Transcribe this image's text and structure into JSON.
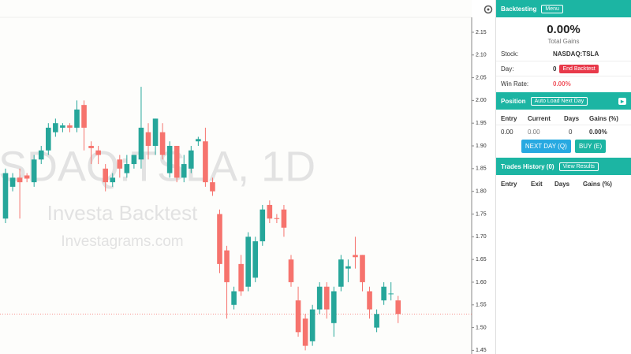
{
  "chart_data": {
    "type": "candlestick",
    "watermark": [
      "SDAQ:TSLA, 1D",
      "Investa Backtest",
      "Investagrams.com"
    ],
    "up_color": "#26a69a",
    "down_color": "#f6736d",
    "ylim": [
      1.442,
      2.221
    ],
    "yticks": [
      1.45,
      {
        "value": 1.5,
        "label": "1.50"
      },
      1.55,
      {
        "value": 1.6,
        "label": "1.60"
      },
      1.65,
      {
        "value": 1.7,
        "label": "1.70"
      },
      1.75,
      {
        "value": 1.8,
        "label": "1.80"
      },
      1.85,
      {
        "value": 1.9,
        "label": "1.90"
      },
      1.95,
      {
        "value": 2.0,
        "label": "2.00"
      },
      2.05,
      {
        "value": 2.1,
        "label": "2.10"
      },
      2.15
    ],
    "price_line": 1.53,
    "open": [
      1.74,
      1.81,
      1.83,
      1.835,
      1.82,
      1.87,
      1.89,
      1.93,
      1.94,
      1.945,
      1.94,
      1.99,
      1.9,
      1.89,
      1.85,
      1.82,
      1.87,
      1.84,
      1.86,
      1.87,
      1.93,
      1.9,
      1.93,
      1.84,
      1.9,
      1.83,
      1.85,
      1.91,
      1.91,
      1.82,
      1.75,
      1.67,
      1.55,
      1.64,
      1.59,
      1.61,
      1.69,
      1.77,
      1.741,
      1.76,
      1.65,
      1.56,
      1.52,
      1.47,
      1.54,
      1.59,
      1.51,
      1.59,
      1.63,
      1.66,
      1.66,
      1.58,
      1.5,
      1.56,
      1.574,
      1.56
    ],
    "high": [
      1.85,
      1.84,
      1.85,
      1.84,
      1.88,
      1.9,
      1.95,
      1.96,
      1.95,
      1.95,
      2.0,
      2.0,
      1.91,
      1.9,
      1.86,
      1.84,
      1.88,
      1.88,
      1.88,
      2.03,
      1.95,
      1.96,
      1.95,
      1.91,
      1.9,
      1.88,
      1.9,
      1.92,
      1.94,
      1.83,
      1.76,
      1.68,
      1.59,
      1.66,
      1.71,
      1.7,
      1.77,
      1.78,
      1.75,
      1.77,
      1.66,
      1.59,
      1.53,
      1.55,
      1.6,
      1.6,
      1.59,
      1.66,
      1.65,
      1.7,
      1.66,
      1.59,
      1.54,
      1.6,
      1.6,
      1.57
    ],
    "low": [
      1.73,
      1.8,
      1.74,
      1.82,
      1.81,
      1.86,
      1.88,
      1.92,
      1.93,
      1.93,
      1.93,
      1.89,
      1.86,
      1.86,
      1.8,
      1.81,
      1.83,
      1.83,
      1.85,
      1.85,
      1.87,
      1.88,
      1.87,
      1.83,
      1.82,
      1.82,
      1.84,
      1.9,
      1.81,
      1.79,
      1.62,
      1.52,
      1.54,
      1.57,
      1.58,
      1.6,
      1.68,
      1.73,
      1.73,
      1.7,
      1.59,
      1.48,
      1.45,
      1.46,
      1.53,
      1.52,
      1.48,
      1.58,
      1.6,
      1.63,
      1.58,
      1.52,
      1.49,
      1.55,
      1.56,
      1.51
    ],
    "close": [
      1.84,
      1.83,
      1.82,
      1.828,
      1.87,
      1.89,
      1.94,
      1.95,
      1.945,
      1.94,
      1.98,
      1.94,
      1.895,
      1.88,
      1.82,
      1.83,
      1.85,
      1.86,
      1.88,
      1.94,
      1.9,
      1.96,
      1.88,
      1.9,
      1.83,
      1.86,
      1.89,
      1.915,
      1.82,
      1.8,
      1.64,
      1.6,
      1.58,
      1.58,
      1.7,
      1.69,
      1.76,
      1.74,
      1.739,
      1.72,
      1.6,
      1.49,
      1.46,
      1.54,
      1.59,
      1.54,
      1.58,
      1.65,
      1.635,
      1.655,
      1.6,
      1.54,
      1.53,
      1.59,
      1.575,
      1.53
    ]
  },
  "panel": {
    "header": {
      "title": "Backtesting",
      "menu": "Menu"
    },
    "total": {
      "value": "0.00%",
      "label": "Total Gains"
    },
    "stock": {
      "label": "Stock:",
      "value": "NASDAQ:TSLA"
    },
    "day": {
      "label": "Day:",
      "value": "0",
      "button": "End Backtest"
    },
    "win_rate": {
      "label": "Win Rate:",
      "value": "0.00%"
    },
    "position": {
      "title": "Position",
      "button": "Auto Load Next Day",
      "headers": [
        "Entry",
        "Current",
        "Days",
        "Gains (%)"
      ],
      "row": [
        "0.00",
        "0.00",
        "0",
        "0.00%"
      ],
      "next_day": "NEXT DAY (Q)",
      "buy": "BUY (E)"
    },
    "history": {
      "title": "Trades History (0)",
      "button": "View Results",
      "headers": [
        "Entry",
        "Exit",
        "Days",
        "Gains (%)"
      ]
    }
  }
}
